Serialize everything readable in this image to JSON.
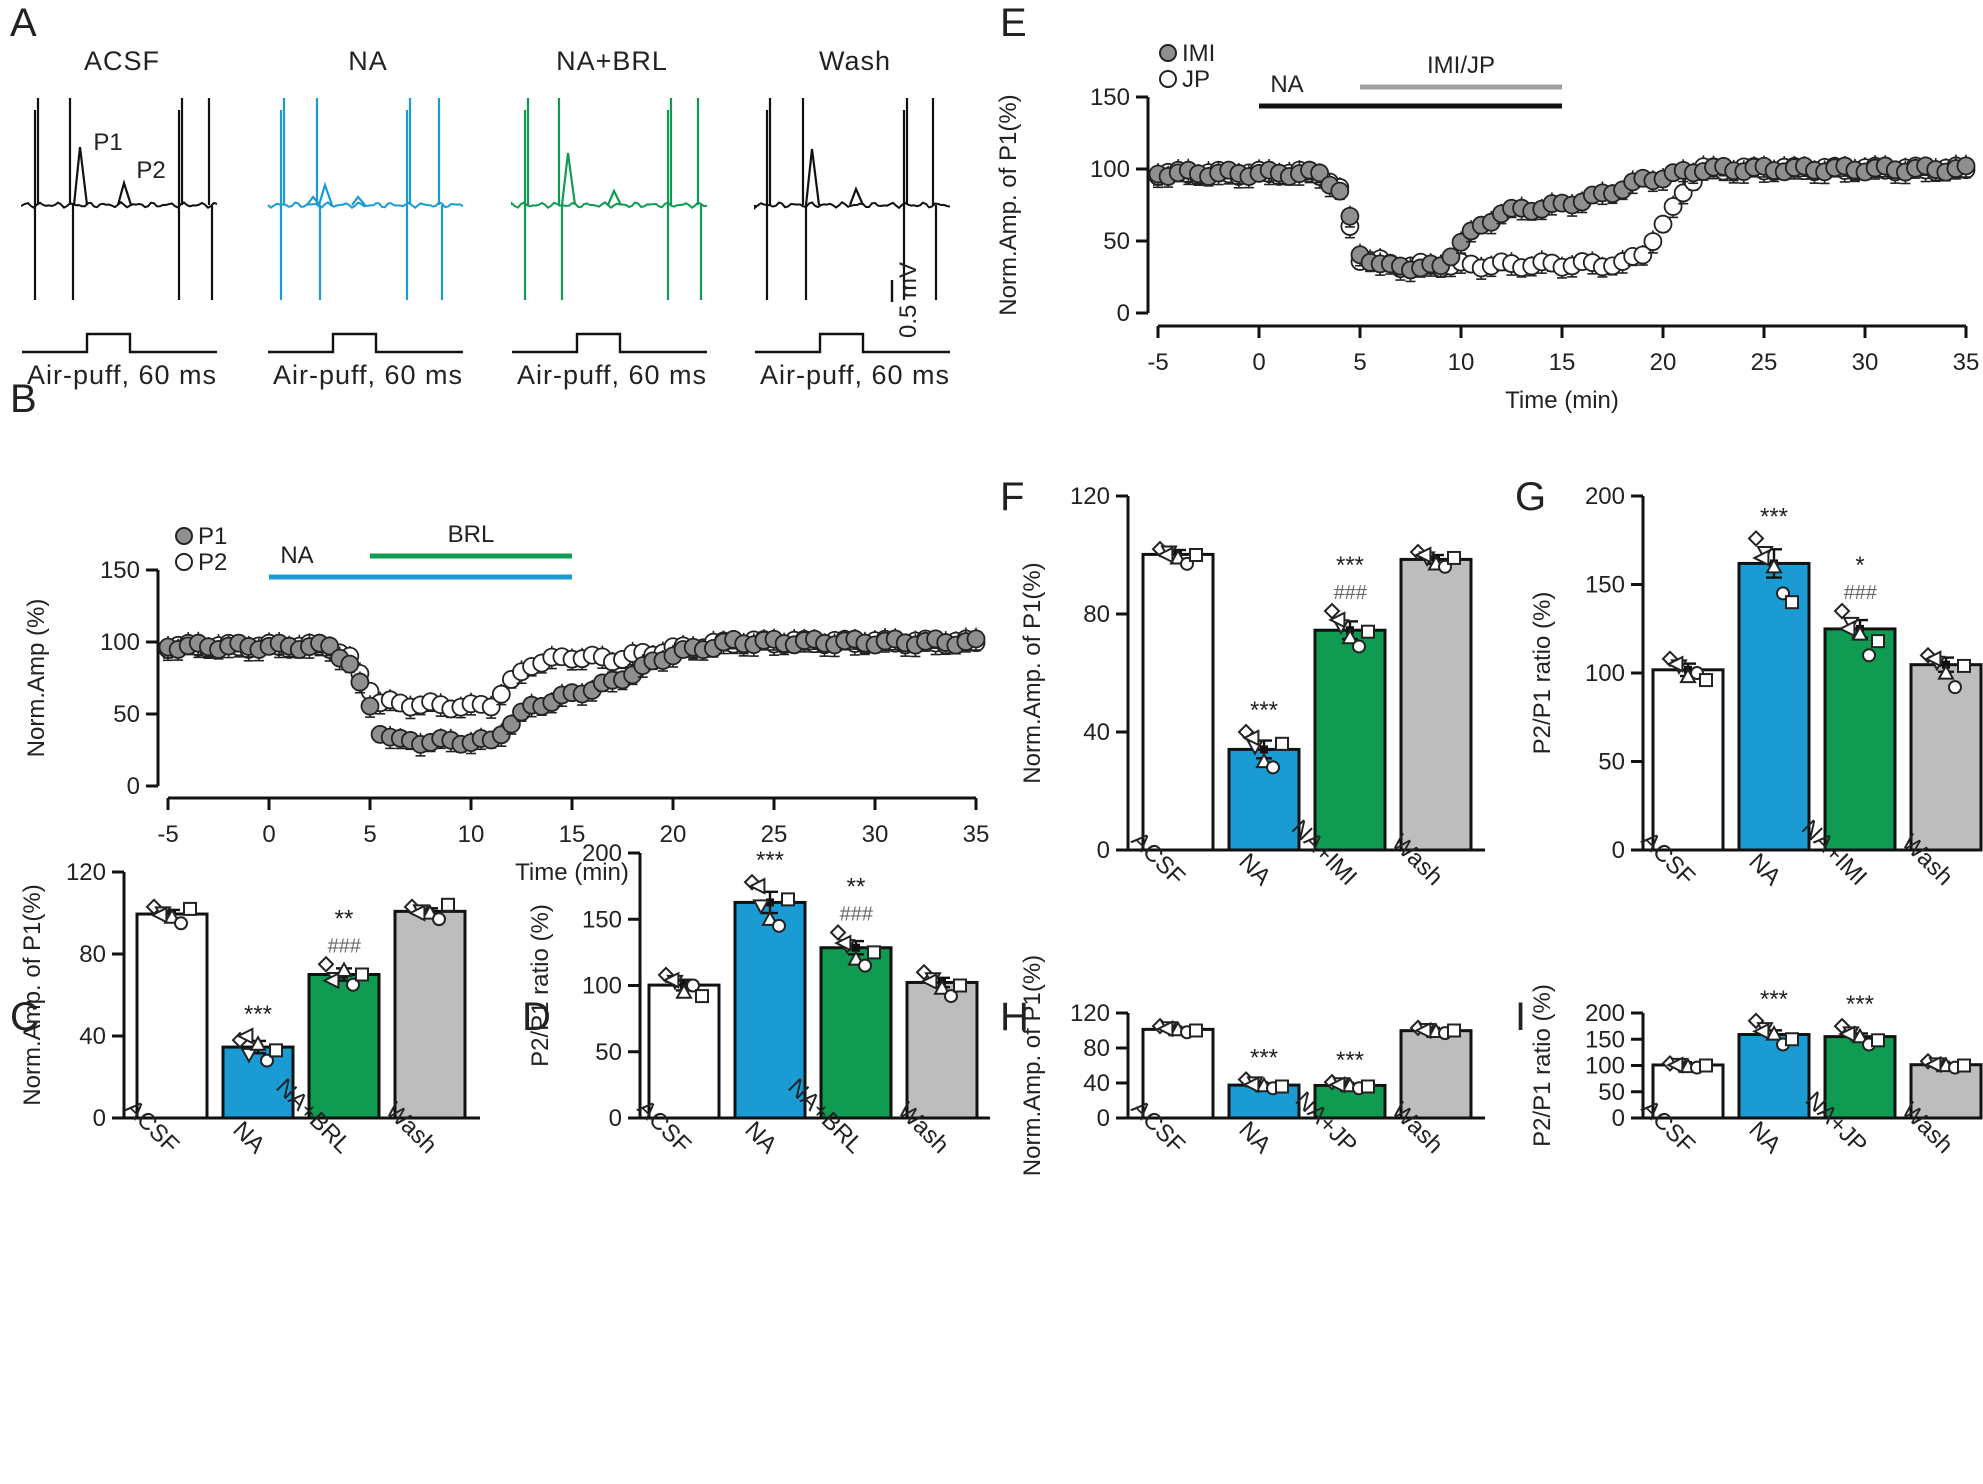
{
  "colors": {
    "acsf": "#ffffff",
    "na": "#1b9bd3",
    "drug": "#0f9b52",
    "wash": "#bdbdbd",
    "black": "#111111",
    "sig": "#222222",
    "hash": "#666666",
    "grey_bar": "#a0a0a0",
    "dot_grey": "#8f8f8f"
  },
  "panels": {
    "A": "A",
    "B": "B",
    "C": "C",
    "D": "D",
    "E": "E",
    "F": "F",
    "G": "G",
    "H": "H",
    "I": "I"
  },
  "panelA": {
    "labels": [
      "ACSF",
      "NA",
      "NA+BRL",
      "Wash"
    ],
    "p1": "P1",
    "p2": "P2",
    "scale": "0.5 mV",
    "stim": "Air-puff, 60 ms"
  },
  "chart_data": [
    {
      "id": "B",
      "type": "scatter",
      "ylabel": "Norm.Amp (%)",
      "xlabel": "Time (min)",
      "ylim": [
        0,
        150
      ],
      "yticks": [
        0,
        50,
        100,
        150
      ],
      "xlim": [
        -5,
        35
      ],
      "xticks": [
        -5,
        0,
        5,
        10,
        15,
        20,
        25,
        30,
        35
      ],
      "legend": [
        "P1",
        "P2"
      ],
      "drug_bars": [
        {
          "label": "NA",
          "start": 0,
          "end": 15,
          "color": "#1b9bd3"
        },
        {
          "label": "BRL",
          "start": 5,
          "end": 15,
          "color": "#0f9b52"
        }
      ],
      "series": [
        {
          "name": "P1",
          "keyframes": [
            [
              -5,
              97
            ],
            [
              3,
              97
            ],
            [
              4,
              85
            ],
            [
              5,
              55
            ],
            [
              5.5,
              38
            ],
            [
              6.5,
              31
            ],
            [
              11,
              31
            ],
            [
              12,
              44
            ],
            [
              13,
              55
            ],
            [
              17,
              72
            ],
            [
              20,
              92
            ],
            [
              23,
              100
            ],
            [
              35,
              100
            ]
          ]
        },
        {
          "name": "P2",
          "keyframes": [
            [
              -5,
              97
            ],
            [
              3,
              97
            ],
            [
              4,
              88
            ],
            [
              5,
              68
            ],
            [
              5.5,
              58
            ],
            [
              10,
              55
            ],
            [
              11,
              57
            ],
            [
              12,
              72
            ],
            [
              13,
              85
            ],
            [
              15,
              90
            ],
            [
              17,
              88
            ],
            [
              20,
              95
            ],
            [
              23,
              100
            ],
            [
              35,
              100
            ]
          ]
        }
      ]
    },
    {
      "id": "E",
      "type": "scatter",
      "ylabel": "Norm.Amp. of P1(%)",
      "xlabel": "Time (min)",
      "ylim": [
        0,
        150
      ],
      "yticks": [
        0,
        50,
        100,
        150
      ],
      "xlim": [
        -5,
        35
      ],
      "xticks": [
        -5,
        0,
        5,
        10,
        15,
        20,
        25,
        30,
        35
      ],
      "legend": [
        "IMI",
        "JP"
      ],
      "drug_bars": [
        {
          "label": "NA",
          "start": 0,
          "end": 15,
          "color": "#111111"
        },
        {
          "label": "IMI/JP",
          "start": 5,
          "end": 15,
          "color": "#a0a0a0"
        }
      ],
      "series": [
        {
          "name": "IMI",
          "keyframes": [
            [
              -5,
              97
            ],
            [
              3,
              97
            ],
            [
              4,
              85
            ],
            [
              4.5,
              65
            ],
            [
              5,
              40
            ],
            [
              6.5,
              32
            ],
            [
              9,
              32
            ],
            [
              10,
              50
            ],
            [
              12,
              70
            ],
            [
              15,
              75
            ],
            [
              17,
              82
            ],
            [
              19,
              92
            ],
            [
              22,
              100
            ],
            [
              35,
              100
            ]
          ]
        },
        {
          "name": "JP",
          "keyframes": [
            [
              -5,
              97
            ],
            [
              3,
              97
            ],
            [
              4,
              85
            ],
            [
              4.5,
              60
            ],
            [
              5,
              38
            ],
            [
              7,
              33
            ],
            [
              18,
              34
            ],
            [
              19,
              42
            ],
            [
              20,
              60
            ],
            [
              21,
              85
            ],
            [
              22,
              100
            ],
            [
              35,
              100
            ]
          ]
        }
      ]
    },
    {
      "id": "C",
      "type": "bar",
      "ylabel": "Norm.Amp. of P1(%)",
      "ylim": [
        0,
        120
      ],
      "yticks": [
        0,
        40,
        80,
        120
      ],
      "categories": [
        "ACSF",
        "NA",
        "NA+BRL",
        "Wash"
      ],
      "values": [
        99.5,
        34.6,
        70.0,
        100.8
      ],
      "sem": [
        2.0,
        3.0,
        3.0,
        1.5
      ],
      "points": [
        [
          103,
          100,
          98,
          95,
          102,
          99
        ],
        [
          38,
          31,
          36,
          28,
          33,
          40
        ],
        [
          75,
          68,
          72,
          65,
          70,
          67
        ],
        [
          103,
          101,
          100,
          97,
          104,
          100
        ]
      ],
      "stars": [
        "",
        "***",
        "**",
        ""
      ],
      "hashes": [
        "",
        "",
        "###",
        ""
      ]
    },
    {
      "id": "D",
      "type": "bar",
      "ylabel": "P2/P1 ratio (%)",
      "ylim": [
        0,
        200
      ],
      "yticks": [
        0,
        50,
        100,
        150,
        200
      ],
      "categories": [
        "ACSF",
        "NA",
        "NA+BRL",
        "Wash"
      ],
      "values": [
        100.3,
        162.7,
        128.5,
        102.3
      ],
      "sem": [
        4.0,
        8.0,
        5.0,
        3.5
      ],
      "points": [
        [
          108,
          103,
          95,
          100,
          92,
          104
        ],
        [
          178,
          160,
          150,
          145,
          165,
          175
        ],
        [
          140,
          130,
          120,
          115,
          125,
          132
        ],
        [
          110,
          105,
          98,
          92,
          100,
          103
        ]
      ],
      "stars": [
        "",
        "***",
        "**",
        ""
      ],
      "hashes": [
        "",
        "",
        "###",
        ""
      ]
    },
    {
      "id": "F",
      "type": "bar",
      "ylabel": "Norm.Amp. of P1(%)",
      "ylim": [
        0,
        120
      ],
      "yticks": [
        0,
        40,
        80,
        120
      ],
      "categories": [
        "ACSF",
        "NA",
        "NA+IMI",
        "Wash"
      ],
      "values": [
        100.2,
        34.1,
        74.5,
        98.5
      ],
      "sem": [
        1.5,
        3.0,
        3.0,
        1.5
      ],
      "points": [
        [
          102,
          101,
          99,
          97,
          100,
          100
        ],
        [
          40,
          35,
          30,
          28,
          36,
          38
        ],
        [
          81,
          76,
          72,
          69,
          74,
          78
        ],
        [
          101,
          99,
          97,
          96,
          99,
          100
        ]
      ],
      "stars": [
        "",
        "***",
        "***",
        ""
      ],
      "hashes": [
        "",
        "",
        "###",
        ""
      ]
    },
    {
      "id": "G",
      "type": "bar",
      "ylabel": "P2/P1 ratio (%)",
      "ylim": [
        0,
        200
      ],
      "yticks": [
        0,
        50,
        100,
        150,
        200
      ],
      "categories": [
        "ACSF",
        "NA",
        "NA+IMI",
        "Wash"
      ],
      "values": [
        101.8,
        161.9,
        124.9,
        104.7
      ],
      "sem": [
        3.5,
        8.0,
        5.0,
        4.0
      ],
      "points": [
        [
          108,
          104,
          98,
          100,
          96,
          105
        ],
        [
          176,
          168,
          160,
          145,
          140,
          165
        ],
        [
          135,
          128,
          122,
          110,
          118,
          125
        ],
        [
          110,
          106,
          100,
          92,
          104,
          108
        ]
      ],
      "stars": [
        "",
        "***",
        "*",
        ""
      ],
      "hashes": [
        "",
        "",
        "###",
        ""
      ]
    },
    {
      "id": "H",
      "type": "bar",
      "ylabel": "Norm.Amp. of P1(%)",
      "ylim": [
        0,
        120
      ],
      "yticks": [
        0,
        40,
        80,
        120
      ],
      "categories": [
        "ACSF",
        "NA",
        "NA+JP",
        "Wash"
      ],
      "values": [
        101.3,
        37.6,
        37.2,
        99.8
      ],
      "sem": [
        2.0,
        2.0,
        2.0,
        1.5
      ],
      "points": [
        [
          105,
          103,
          101,
          98,
          100,
          102
        ],
        [
          44,
          40,
          37,
          34,
          36,
          38
        ],
        [
          41,
          39,
          37,
          34,
          36,
          38
        ],
        [
          103,
          101,
          99,
          97,
          100,
          100
        ]
      ],
      "stars": [
        "",
        "***",
        "***",
        ""
      ],
      "hashes": [
        "",
        "",
        "",
        ""
      ]
    },
    {
      "id": "I",
      "type": "bar",
      "ylabel": "P2/P1 ratio (%)",
      "ylim": [
        0,
        200
      ],
      "yticks": [
        0,
        50,
        100,
        150,
        200
      ],
      "categories": [
        "ACSF",
        "NA",
        "NA+JP",
        "Wash"
      ],
      "values": [
        101.0,
        159.0,
        155.0,
        101.5
      ],
      "sem": [
        3.0,
        8.0,
        6.0,
        3.0
      ],
      "points": [
        [
          104,
          102,
          98,
          96,
          100,
          101
        ],
        [
          185,
          170,
          160,
          140,
          150,
          165
        ],
        [
          175,
          162,
          155,
          140,
          148,
          160
        ],
        [
          108,
          103,
          100,
          96,
          100,
          102
        ]
      ],
      "stars": [
        "",
        "***",
        "***",
        ""
      ],
      "hashes": [
        "",
        "",
        "",
        ""
      ]
    }
  ]
}
